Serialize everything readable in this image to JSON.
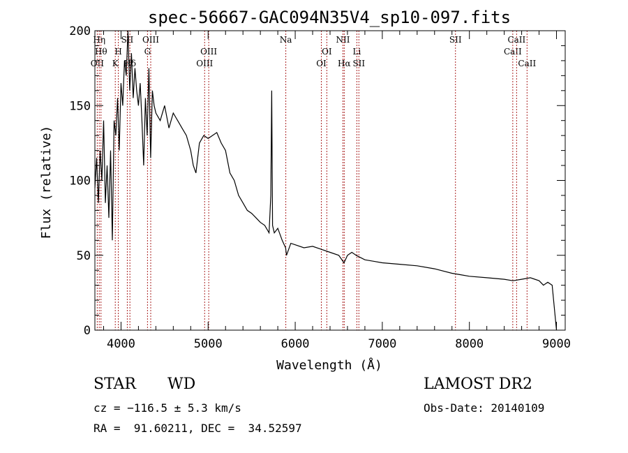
{
  "chart_data": {
    "type": "line",
    "title": "spec-56667-GAC094N35V4_sp10-097.fits",
    "xlabel": "Wavelength (Å)",
    "ylabel": "Flux (relative)",
    "xlim": [
      3700,
      9100
    ],
    "ylim": [
      0,
      200
    ],
    "x_ticks": [
      4000,
      5000,
      6000,
      7000,
      8000,
      9000
    ],
    "y_ticks": [
      0,
      50,
      100,
      150,
      200
    ],
    "grid": false,
    "line_color": "#000000",
    "marker_color": "#aa2222",
    "series": [
      {
        "x": [
          3700,
          3720,
          3740,
          3760,
          3780,
          3800,
          3820,
          3840,
          3860,
          3880,
          3900,
          3920,
          3940,
          3960,
          3980,
          4000,
          4020,
          4040,
          4060,
          4080,
          4100,
          4120,
          4140,
          4160,
          4180,
          4200,
          4220,
          4240,
          4260,
          4280,
          4300,
          4320,
          4340,
          4360,
          4380,
          4400,
          4450,
          4500,
          4550,
          4600,
          4650,
          4700,
          4750,
          4800,
          4830,
          4860,
          4880,
          4900,
          4950,
          5000,
          5050,
          5100,
          5150,
          5200,
          5250,
          5300,
          5350,
          5400,
          5450,
          5500,
          5550,
          5600,
          5650,
          5700,
          5720,
          5730,
          5740,
          5760,
          5800,
          5850,
          5890,
          5900,
          5950,
          6000,
          6100,
          6200,
          6300,
          6400,
          6500,
          6560,
          6600,
          6650,
          6700,
          6800,
          6900,
          7000,
          7200,
          7400,
          7600,
          7800,
          7900,
          8000,
          8200,
          8400,
          8500,
          8600,
          8700,
          8800,
          8850,
          8900,
          8950,
          9000
        ],
        "y": [
          95,
          115,
          85,
          120,
          100,
          140,
          85,
          110,
          75,
          120,
          60,
          140,
          130,
          155,
          120,
          165,
          150,
          180,
          170,
          200,
          160,
          185,
          155,
          175,
          160,
          150,
          165,
          140,
          110,
          155,
          130,
          175,
          115,
          160,
          150,
          145,
          140,
          150,
          135,
          145,
          140,
          135,
          130,
          120,
          110,
          105,
          115,
          125,
          130,
          128,
          130,
          132,
          125,
          120,
          105,
          100,
          90,
          85,
          80,
          78,
          75,
          72,
          70,
          65,
          90,
          160,
          70,
          65,
          68,
          60,
          55,
          50,
          58,
          57,
          55,
          56,
          54,
          52,
          50,
          45,
          50,
          52,
          50,
          47,
          46,
          45,
          44,
          43,
          41,
          38,
          37,
          36,
          35,
          34,
          33,
          34,
          35,
          33,
          30,
          32,
          30,
          0
        ]
      }
    ],
    "lines": [
      {
        "wl": 3727,
        "label": "OII",
        "row": 3
      },
      {
        "wl": 3750,
        "label": "Hη",
        "row": 1
      },
      {
        "wl": 3770,
        "label": "Hθ",
        "row": 2
      },
      {
        "wl": 3934,
        "label": "K",
        "row": 3
      },
      {
        "wl": 3969,
        "label": "H",
        "row": 2
      },
      {
        "wl": 4072,
        "label": "SII",
        "row": 1
      },
      {
        "wl": 4102,
        "label": "Hδ",
        "row": 3
      },
      {
        "wl": 4304,
        "label": "G",
        "row": 2
      },
      {
        "wl": 4341,
        "label": "OIII",
        "row": 1
      },
      {
        "wl": 4960,
        "label": "OIII",
        "row": 3
      },
      {
        "wl": 5007,
        "label": "OIII",
        "row": 2
      },
      {
        "wl": 5892,
        "label": "Na",
        "row": 1
      },
      {
        "wl": 6300,
        "label": "OI",
        "row": 3
      },
      {
        "wl": 6363,
        "label": "OI",
        "row": 2
      },
      {
        "wl": 6548,
        "label": "NII",
        "row": 1
      },
      {
        "wl": 6563,
        "label": "Hα",
        "row": 3
      },
      {
        "wl": 6708,
        "label": "Li",
        "row": 2
      },
      {
        "wl": 6731,
        "label": "SII",
        "row": 3
      },
      {
        "wl": 7840,
        "label": "SII",
        "row": 1
      },
      {
        "wl": 8498,
        "label": "CaII",
        "row": 2
      },
      {
        "wl": 8542,
        "label": "CaII",
        "row": 1
      },
      {
        "wl": 8662,
        "label": "CaII",
        "row": 3
      }
    ]
  },
  "info": {
    "class_label": "STAR",
    "subclass_label": "WD",
    "survey": "LAMOST DR2",
    "cz": "cz = −116.5 ± 5.3 km/s",
    "obs_date": "Obs-Date: 20140109",
    "coords": "RA =  91.60211, DEC =  34.52597"
  }
}
